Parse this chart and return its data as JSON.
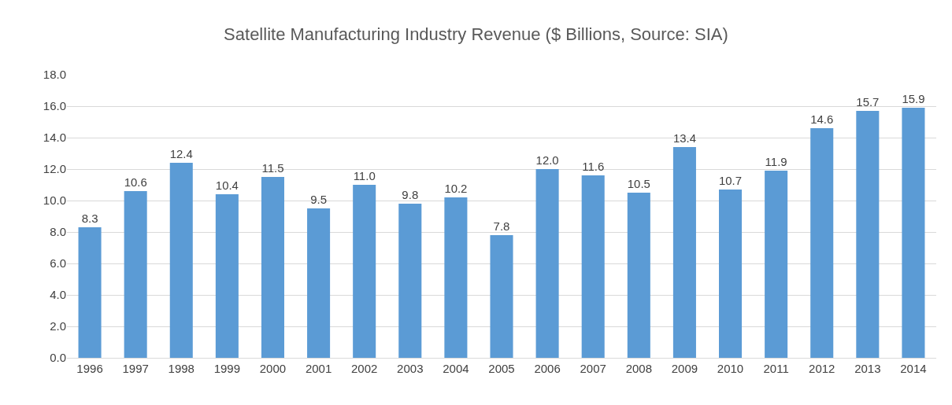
{
  "chart_data": {
    "type": "bar",
    "title": "Satellite Manufacturing Industry Revenue ($ Billions, Source: SIA)",
    "categories": [
      "1996",
      "1997",
      "1998",
      "1999",
      "2000",
      "2001",
      "2002",
      "2003",
      "2004",
      "2005",
      "2006",
      "2007",
      "2008",
      "2009",
      "2010",
      "2011",
      "2012",
      "2013",
      "2014"
    ],
    "values": [
      8.3,
      10.6,
      12.4,
      10.4,
      11.5,
      9.5,
      11.0,
      9.8,
      10.2,
      7.8,
      12.0,
      11.6,
      10.5,
      13.4,
      10.7,
      11.9,
      14.6,
      15.7,
      15.9
    ],
    "value_labels": [
      "8.3",
      "10.6",
      "12.4",
      "10.4",
      "11.5",
      "9.5",
      "11.0",
      "9.8",
      "10.2",
      "7.8",
      "12.0",
      "11.6",
      "10.5",
      "13.4",
      "10.7",
      "11.9",
      "14.6",
      "15.7",
      "15.9"
    ],
    "color": "#5b9bd5",
    "ylim": [
      0,
      18
    ],
    "yticks": [
      {
        "value": 0,
        "label": "0.0"
      },
      {
        "value": 2,
        "label": "2.0"
      },
      {
        "value": 4,
        "label": "4.0"
      },
      {
        "value": 6,
        "label": "6.0"
      },
      {
        "value": 8,
        "label": "8.0"
      },
      {
        "value": 10,
        "label": "10.0"
      },
      {
        "value": 12,
        "label": "12.0"
      },
      {
        "value": 14,
        "label": "14.0"
      },
      {
        "value": 16,
        "label": "16.0"
      },
      {
        "value": 18,
        "label": "18.0"
      }
    ],
    "grid": "y",
    "legend": false
  }
}
